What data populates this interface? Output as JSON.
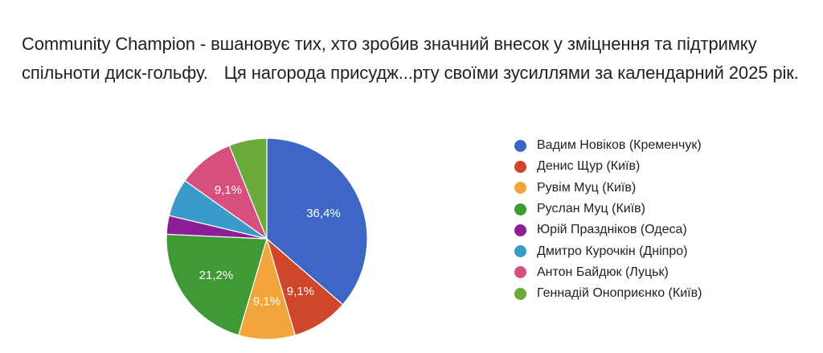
{
  "question": {
    "title_line1": "Community Champion - вшановує тих, хто зробив значний внесок у зміцнення та підтримку",
    "title_line2_a": "спільноти диск-гольфу.",
    "title_line2_b": "Ця нагорода присудж...рту своїми зусиллями за календарний 2025 рік."
  },
  "chart_data": {
    "type": "pie",
    "title": "",
    "legend_position": "right",
    "series": [
      {
        "name": "Вадим Новіков (Кременчук)",
        "value": 36.4,
        "label": "36,4%",
        "color": "#3d66c6"
      },
      {
        "name": "Денис Щур (Київ)",
        "value": 9.1,
        "label": "9,1%",
        "color": "#d0462a"
      },
      {
        "name": "Рувім Муц (Київ)",
        "value": 9.1,
        "label": "9,1%",
        "color": "#f2a53b"
      },
      {
        "name": "Руслан Муц (Київ)",
        "value": 21.2,
        "label": "21,2%",
        "color": "#3f9a35"
      },
      {
        "name": "Юрій Празднiков (Одеса)",
        "value": 3.0,
        "label": "",
        "color": "#8c1f97"
      },
      {
        "name": "Дмитро Курочкін (Дніпро)",
        "value": 6.1,
        "label": "",
        "color": "#3a9bc9"
      },
      {
        "name": "Антон Байдюк (Луцьк)",
        "value": 9.1,
        "label": "9,1%",
        "color": "#d64f7e"
      },
      {
        "name": "Геннадій Оноприєнко (Київ)",
        "value": 6.1,
        "label": "",
        "color": "#6aaa3a"
      }
    ]
  }
}
